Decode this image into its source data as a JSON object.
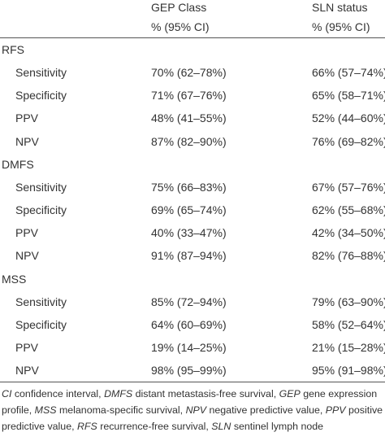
{
  "header": {
    "col1_line1": "GEP Class",
    "col1_line2": "% (95% CI)",
    "col2_line1": "SLN status",
    "col2_line2": "% (95% CI)"
  },
  "rows": [
    {
      "label": "RFS",
      "gep": "",
      "sln": "",
      "type": "group"
    },
    {
      "label": "Sensitivity",
      "gep": "70% (62–78%)",
      "sln": "66% (57–74%)",
      "type": "metric"
    },
    {
      "label": "Specificity",
      "gep": "71% (67–76%)",
      "sln": "65% (58–71%)",
      "type": "metric"
    },
    {
      "label": "PPV",
      "gep": "48% (41–55%)",
      "sln": "52% (44–60%)",
      "type": "metric"
    },
    {
      "label": "NPV",
      "gep": "87% (82–90%)",
      "sln": "76% (69–82%)",
      "type": "metric"
    },
    {
      "label": "DMFS",
      "gep": "",
      "sln": "",
      "type": "group"
    },
    {
      "label": "Sensitivity",
      "gep": "75% (66–83%)",
      "sln": "67% (57–76%)",
      "type": "metric"
    },
    {
      "label": "Specificity",
      "gep": "69% (65–74%)",
      "sln": "62% (55–68%)",
      "type": "metric"
    },
    {
      "label": "PPV",
      "gep": "40% (33–47%)",
      "sln": "42% (34–50%)",
      "type": "metric"
    },
    {
      "label": "NPV",
      "gep": "91% (87–94%)",
      "sln": "82% (76–88%)",
      "type": "metric"
    },
    {
      "label": "MSS",
      "gep": "",
      "sln": "",
      "type": "group"
    },
    {
      "label": "Sensitivity",
      "gep": "85% (72–94%)",
      "sln": "79% (63–90%)",
      "type": "metric"
    },
    {
      "label": "Specificity",
      "gep": "64% (60–69%)",
      "sln": "58% (52–64%)",
      "type": "metric"
    },
    {
      "label": "PPV",
      "gep": "19% (14–25%)",
      "sln": "21% (15–28%)",
      "type": "metric"
    },
    {
      "label": "NPV",
      "gep": "98% (95–99%)",
      "sln": "95% (91–98%)",
      "type": "metric"
    }
  ],
  "footnote": [
    {
      "abbr": "CI",
      "text": " confidence interval, "
    },
    {
      "abbr": "DMFS",
      "text": " distant metastasis-free survival, "
    },
    {
      "abbr": "GEP",
      "text": " gene expression profile, "
    },
    {
      "abbr": "MSS",
      "text": " melanoma-specific survival, "
    },
    {
      "abbr": "NPV",
      "text": " negative predictive value, "
    },
    {
      "abbr": "PPV",
      "text": " positive predictive value, "
    },
    {
      "abbr": "RFS",
      "text": " recurrence-free survival, "
    },
    {
      "abbr": "SLN",
      "text": " sentinel lymph node"
    }
  ]
}
